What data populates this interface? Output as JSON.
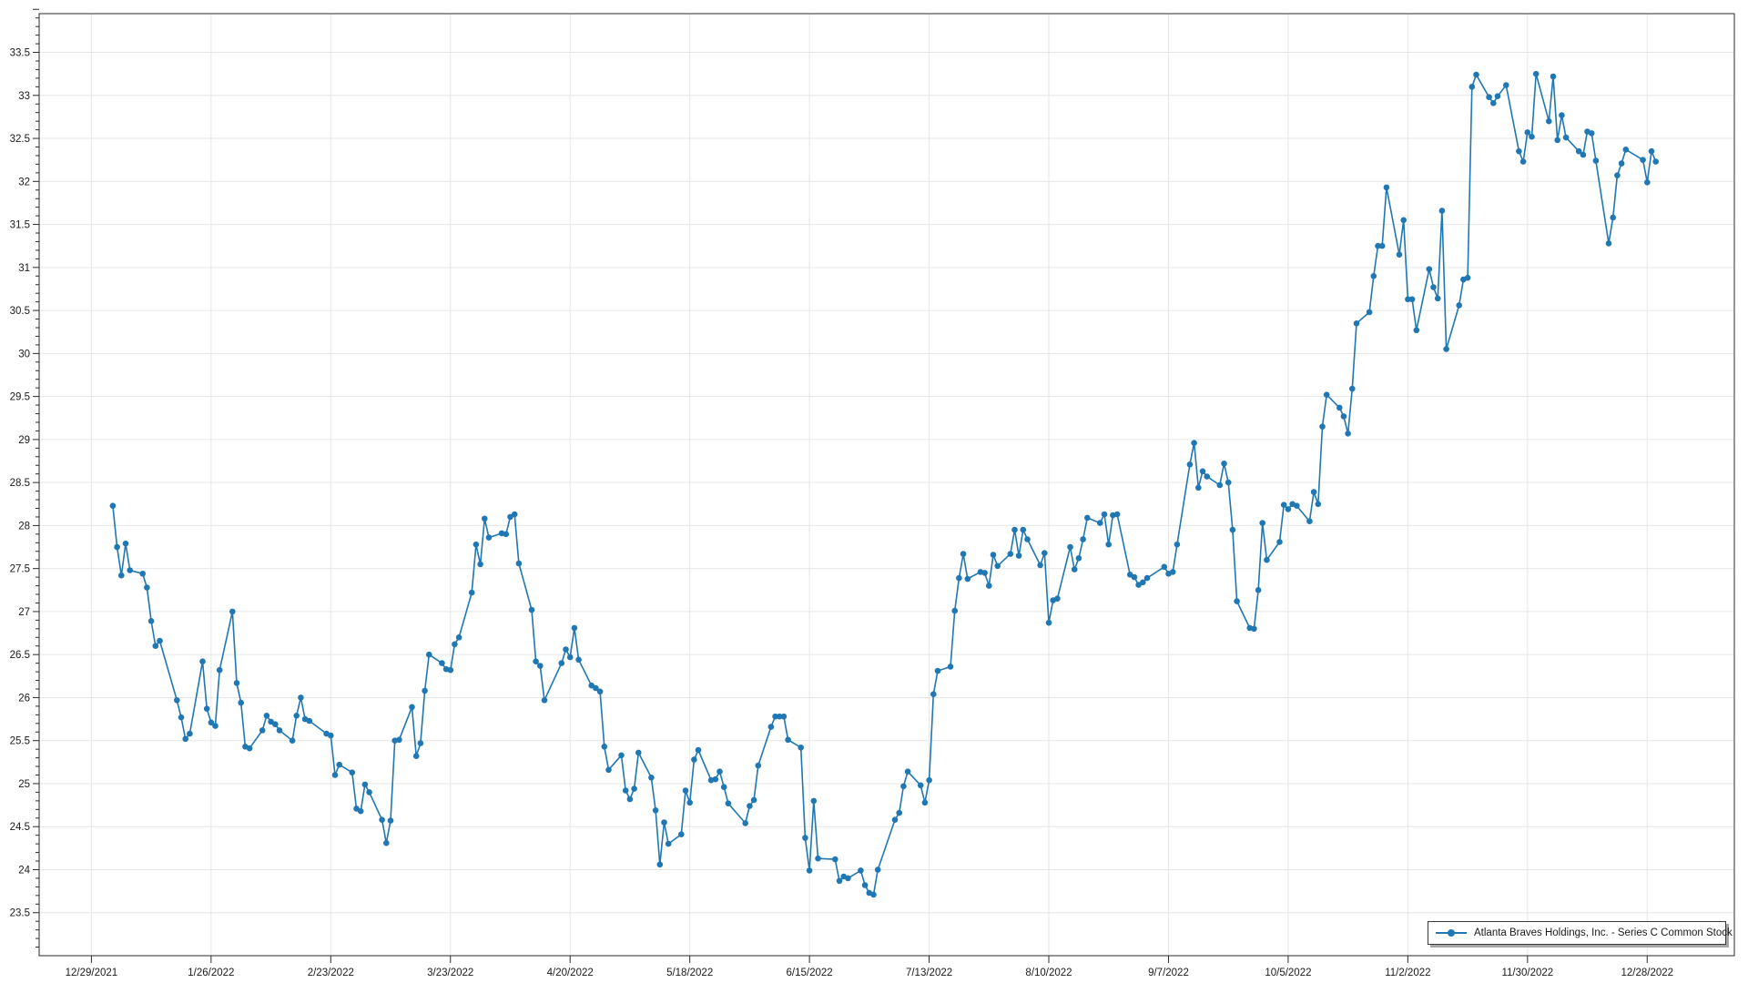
{
  "window": {
    "background": "#ffffff"
  },
  "legend": {
    "label": "Atlanta Braves Holdings, Inc. - Series C Common Stock",
    "position": "bottom-right"
  },
  "colors": {
    "line": "#1f77b4",
    "grid": "#e6e6e6",
    "axis": "#2b2b2b",
    "label": "#1a1a1a",
    "legend_border": "#3a3a3a",
    "legend_shadow": "#a6a6a6"
  },
  "chart_data": {
    "type": "line",
    "title": "",
    "xlabel": "",
    "ylabel": "",
    "grid": true,
    "legend_position": "bottom-right",
    "x_axis": {
      "type": "date",
      "tick_labels": [
        "12/29/2021",
        "1/26/2022",
        "2/23/2022",
        "3/23/2022",
        "4/20/2022",
        "5/18/2022",
        "6/15/2022",
        "7/13/2022",
        "8/10/2022",
        "9/7/2022",
        "10/5/2022",
        "11/2/2022",
        "11/30/2022",
        "12/28/2022"
      ]
    },
    "y_axis": {
      "min": 23.0,
      "max": 33.95,
      "major_step": 0.5,
      "minor_step": 0.1,
      "first_label": 23.5,
      "last_label": 33.5
    },
    "series": [
      {
        "name": "Atlanta Braves Holdings, Inc. - Series C Common Stock",
        "color": "#1f77b4",
        "marker": "circle",
        "points": [
          [
            "2022-01-03",
            28.23
          ],
          [
            "2022-01-04",
            27.75
          ],
          [
            "2022-01-05",
            27.42
          ],
          [
            "2022-01-06",
            27.79
          ],
          [
            "2022-01-07",
            27.48
          ],
          [
            "2022-01-10",
            27.44
          ],
          [
            "2022-01-11",
            27.28
          ],
          [
            "2022-01-12",
            26.89
          ],
          [
            "2022-01-13",
            26.6
          ],
          [
            "2022-01-14",
            26.66
          ],
          [
            "2022-01-18",
            25.97
          ],
          [
            "2022-01-19",
            25.77
          ],
          [
            "2022-01-20",
            25.52
          ],
          [
            "2022-01-21",
            25.58
          ],
          [
            "2022-01-24",
            26.42
          ],
          [
            "2022-01-25",
            25.87
          ],
          [
            "2022-01-26",
            25.71
          ],
          [
            "2022-01-27",
            25.67
          ],
          [
            "2022-01-28",
            26.32
          ],
          [
            "2022-01-31",
            27.0
          ],
          [
            "2022-02-01",
            26.17
          ],
          [
            "2022-02-02",
            25.94
          ],
          [
            "2022-02-03",
            25.43
          ],
          [
            "2022-02-04",
            25.41
          ],
          [
            "2022-02-07",
            25.62
          ],
          [
            "2022-02-08",
            25.79
          ],
          [
            "2022-02-09",
            25.72
          ],
          [
            "2022-02-10",
            25.69
          ],
          [
            "2022-02-11",
            25.62
          ],
          [
            "2022-02-14",
            25.5
          ],
          [
            "2022-02-15",
            25.79
          ],
          [
            "2022-02-16",
            26.0
          ],
          [
            "2022-02-17",
            25.75
          ],
          [
            "2022-02-18",
            25.73
          ],
          [
            "2022-02-22",
            25.58
          ],
          [
            "2022-02-23",
            25.56
          ],
          [
            "2022-02-24",
            25.1
          ],
          [
            "2022-02-25",
            25.22
          ],
          [
            "2022-02-28",
            25.13
          ],
          [
            "2022-03-01",
            24.71
          ],
          [
            "2022-03-02",
            24.68
          ],
          [
            "2022-03-03",
            24.99
          ],
          [
            "2022-03-04",
            24.9
          ],
          [
            "2022-03-07",
            24.58
          ],
          [
            "2022-03-08",
            24.31
          ],
          [
            "2022-03-09",
            24.57
          ],
          [
            "2022-03-10",
            25.5
          ],
          [
            "2022-03-11",
            25.51
          ],
          [
            "2022-03-14",
            25.89
          ],
          [
            "2022-03-15",
            25.32
          ],
          [
            "2022-03-16",
            25.47
          ],
          [
            "2022-03-17",
            26.08
          ],
          [
            "2022-03-18",
            26.5
          ],
          [
            "2022-03-21",
            26.4
          ],
          [
            "2022-03-22",
            26.33
          ],
          [
            "2022-03-23",
            26.32
          ],
          [
            "2022-03-24",
            26.62
          ],
          [
            "2022-03-25",
            26.7
          ],
          [
            "2022-03-28",
            27.22
          ],
          [
            "2022-03-29",
            27.78
          ],
          [
            "2022-03-30",
            27.55
          ],
          [
            "2022-03-31",
            28.08
          ],
          [
            "2022-04-01",
            27.86
          ],
          [
            "2022-04-04",
            27.91
          ],
          [
            "2022-04-05",
            27.9
          ],
          [
            "2022-04-06",
            28.1
          ],
          [
            "2022-04-07",
            28.13
          ],
          [
            "2022-04-08",
            27.56
          ],
          [
            "2022-04-11",
            27.02
          ],
          [
            "2022-04-12",
            26.42
          ],
          [
            "2022-04-13",
            26.37
          ],
          [
            "2022-04-14",
            25.97
          ],
          [
            "2022-04-18",
            26.4
          ],
          [
            "2022-04-19",
            26.56
          ],
          [
            "2022-04-20",
            26.47
          ],
          [
            "2022-04-21",
            26.81
          ],
          [
            "2022-04-22",
            26.44
          ],
          [
            "2022-04-25",
            26.14
          ],
          [
            "2022-04-26",
            26.11
          ],
          [
            "2022-04-27",
            26.07
          ],
          [
            "2022-04-28",
            25.43
          ],
          [
            "2022-04-29",
            25.16
          ],
          [
            "2022-05-02",
            25.33
          ],
          [
            "2022-05-03",
            24.92
          ],
          [
            "2022-05-04",
            24.82
          ],
          [
            "2022-05-05",
            24.94
          ],
          [
            "2022-05-06",
            25.36
          ],
          [
            "2022-05-09",
            25.07
          ],
          [
            "2022-05-10",
            24.69
          ],
          [
            "2022-05-11",
            24.06
          ],
          [
            "2022-05-12",
            24.55
          ],
          [
            "2022-05-13",
            24.3
          ],
          [
            "2022-05-16",
            24.41
          ],
          [
            "2022-05-17",
            24.92
          ],
          [
            "2022-05-18",
            24.78
          ],
          [
            "2022-05-19",
            25.28
          ],
          [
            "2022-05-20",
            25.39
          ],
          [
            "2022-05-23",
            25.04
          ],
          [
            "2022-05-24",
            25.05
          ],
          [
            "2022-05-25",
            25.14
          ],
          [
            "2022-05-26",
            24.96
          ],
          [
            "2022-05-27",
            24.77
          ],
          [
            "2022-05-31",
            24.54
          ],
          [
            "2022-06-01",
            24.74
          ],
          [
            "2022-06-02",
            24.81
          ],
          [
            "2022-06-03",
            25.21
          ],
          [
            "2022-06-06",
            25.66
          ],
          [
            "2022-06-07",
            25.78
          ],
          [
            "2022-06-08",
            25.78
          ],
          [
            "2022-06-09",
            25.78
          ],
          [
            "2022-06-10",
            25.51
          ],
          [
            "2022-06-13",
            25.42
          ],
          [
            "2022-06-14",
            24.37
          ],
          [
            "2022-06-15",
            23.99
          ],
          [
            "2022-06-16",
            24.8
          ],
          [
            "2022-06-17",
            24.13
          ],
          [
            "2022-06-21",
            24.12
          ],
          [
            "2022-06-22",
            23.87
          ],
          [
            "2022-06-23",
            23.92
          ],
          [
            "2022-06-24",
            23.9
          ],
          [
            "2022-06-27",
            23.99
          ],
          [
            "2022-06-28",
            23.82
          ],
          [
            "2022-06-29",
            23.73
          ],
          [
            "2022-06-30",
            23.71
          ],
          [
            "2022-07-01",
            24.0
          ],
          [
            "2022-07-05",
            24.58
          ],
          [
            "2022-07-06",
            24.66
          ],
          [
            "2022-07-07",
            24.97
          ],
          [
            "2022-07-08",
            25.14
          ],
          [
            "2022-07-11",
            24.98
          ],
          [
            "2022-07-12",
            24.78
          ],
          [
            "2022-07-13",
            25.04
          ],
          [
            "2022-07-14",
            26.04
          ],
          [
            "2022-07-15",
            26.31
          ],
          [
            "2022-07-18",
            26.36
          ],
          [
            "2022-07-19",
            27.01
          ],
          [
            "2022-07-20",
            27.39
          ],
          [
            "2022-07-21",
            27.67
          ],
          [
            "2022-07-22",
            27.38
          ],
          [
            "2022-07-25",
            27.46
          ],
          [
            "2022-07-26",
            27.45
          ],
          [
            "2022-07-27",
            27.3
          ],
          [
            "2022-07-28",
            27.66
          ],
          [
            "2022-07-29",
            27.53
          ],
          [
            "2022-08-01",
            27.67
          ],
          [
            "2022-08-02",
            27.95
          ],
          [
            "2022-08-03",
            27.65
          ],
          [
            "2022-08-04",
            27.95
          ],
          [
            "2022-08-05",
            27.84
          ],
          [
            "2022-08-08",
            27.54
          ],
          [
            "2022-08-09",
            27.68
          ],
          [
            "2022-08-10",
            26.87
          ],
          [
            "2022-08-11",
            27.13
          ],
          [
            "2022-08-12",
            27.15
          ],
          [
            "2022-08-15",
            27.75
          ],
          [
            "2022-08-16",
            27.49
          ],
          [
            "2022-08-17",
            27.62
          ],
          [
            "2022-08-18",
            27.84
          ],
          [
            "2022-08-19",
            28.09
          ],
          [
            "2022-08-22",
            28.03
          ],
          [
            "2022-08-23",
            28.13
          ],
          [
            "2022-08-24",
            27.78
          ],
          [
            "2022-08-25",
            28.12
          ],
          [
            "2022-08-26",
            28.13
          ],
          [
            "2022-08-29",
            27.43
          ],
          [
            "2022-08-30",
            27.4
          ],
          [
            "2022-08-31",
            27.31
          ],
          [
            "2022-09-01",
            27.34
          ],
          [
            "2022-09-02",
            27.39
          ],
          [
            "2022-09-06",
            27.52
          ],
          [
            "2022-09-07",
            27.44
          ],
          [
            "2022-09-08",
            27.46
          ],
          [
            "2022-09-09",
            27.78
          ],
          [
            "2022-09-12",
            28.71
          ],
          [
            "2022-09-13",
            28.96
          ],
          [
            "2022-09-14",
            28.44
          ],
          [
            "2022-09-15",
            28.63
          ],
          [
            "2022-09-16",
            28.57
          ],
          [
            "2022-09-19",
            28.47
          ],
          [
            "2022-09-20",
            28.72
          ],
          [
            "2022-09-21",
            28.5
          ],
          [
            "2022-09-22",
            27.95
          ],
          [
            "2022-09-23",
            27.12
          ],
          [
            "2022-09-26",
            26.81
          ],
          [
            "2022-09-27",
            26.8
          ],
          [
            "2022-09-28",
            27.25
          ],
          [
            "2022-09-29",
            28.03
          ],
          [
            "2022-09-30",
            27.6
          ],
          [
            "2022-10-03",
            27.81
          ],
          [
            "2022-10-04",
            28.24
          ],
          [
            "2022-10-05",
            28.19
          ],
          [
            "2022-10-06",
            28.25
          ],
          [
            "2022-10-07",
            28.23
          ],
          [
            "2022-10-10",
            28.05
          ],
          [
            "2022-10-11",
            28.39
          ],
          [
            "2022-10-12",
            28.25
          ],
          [
            "2022-10-13",
            29.15
          ],
          [
            "2022-10-14",
            29.52
          ],
          [
            "2022-10-17",
            29.37
          ],
          [
            "2022-10-18",
            29.27
          ],
          [
            "2022-10-19",
            29.07
          ],
          [
            "2022-10-20",
            29.59
          ],
          [
            "2022-10-21",
            30.35
          ],
          [
            "2022-10-24",
            30.48
          ],
          [
            "2022-10-25",
            30.9
          ],
          [
            "2022-10-26",
            31.25
          ],
          [
            "2022-10-27",
            31.25
          ],
          [
            "2022-10-28",
            31.93
          ],
          [
            "2022-10-31",
            31.15
          ],
          [
            "2022-11-01",
            31.55
          ],
          [
            "2022-11-02",
            30.63
          ],
          [
            "2022-11-03",
            30.63
          ],
          [
            "2022-11-04",
            30.27
          ],
          [
            "2022-11-07",
            30.98
          ],
          [
            "2022-11-08",
            30.77
          ],
          [
            "2022-11-09",
            30.64
          ],
          [
            "2022-11-10",
            31.66
          ],
          [
            "2022-11-11",
            30.05
          ],
          [
            "2022-11-14",
            30.56
          ],
          [
            "2022-11-15",
            30.86
          ],
          [
            "2022-11-16",
            30.88
          ],
          [
            "2022-11-17",
            33.1
          ],
          [
            "2022-11-18",
            33.24
          ],
          [
            "2022-11-21",
            32.98
          ],
          [
            "2022-11-22",
            32.91
          ],
          [
            "2022-11-23",
            32.99
          ],
          [
            "2022-11-25",
            33.12
          ],
          [
            "2022-11-28",
            32.35
          ],
          [
            "2022-11-29",
            32.23
          ],
          [
            "2022-11-30",
            32.57
          ],
          [
            "2022-12-01",
            32.52
          ],
          [
            "2022-12-02",
            33.25
          ],
          [
            "2022-12-05",
            32.7
          ],
          [
            "2022-12-06",
            33.22
          ],
          [
            "2022-12-07",
            32.48
          ],
          [
            "2022-12-08",
            32.77
          ],
          [
            "2022-12-09",
            32.51
          ],
          [
            "2022-12-12",
            32.35
          ],
          [
            "2022-12-13",
            32.31
          ],
          [
            "2022-12-14",
            32.58
          ],
          [
            "2022-12-15",
            32.56
          ],
          [
            "2022-12-16",
            32.24
          ],
          [
            "2022-12-19",
            31.28
          ],
          [
            "2022-12-20",
            31.58
          ],
          [
            "2022-12-21",
            32.07
          ],
          [
            "2022-12-22",
            32.21
          ],
          [
            "2022-12-23",
            32.37
          ],
          [
            "2022-12-27",
            32.25
          ],
          [
            "2022-12-28",
            31.99
          ],
          [
            "2022-12-29",
            32.35
          ],
          [
            "2022-12-30",
            32.23
          ]
        ]
      }
    ]
  }
}
